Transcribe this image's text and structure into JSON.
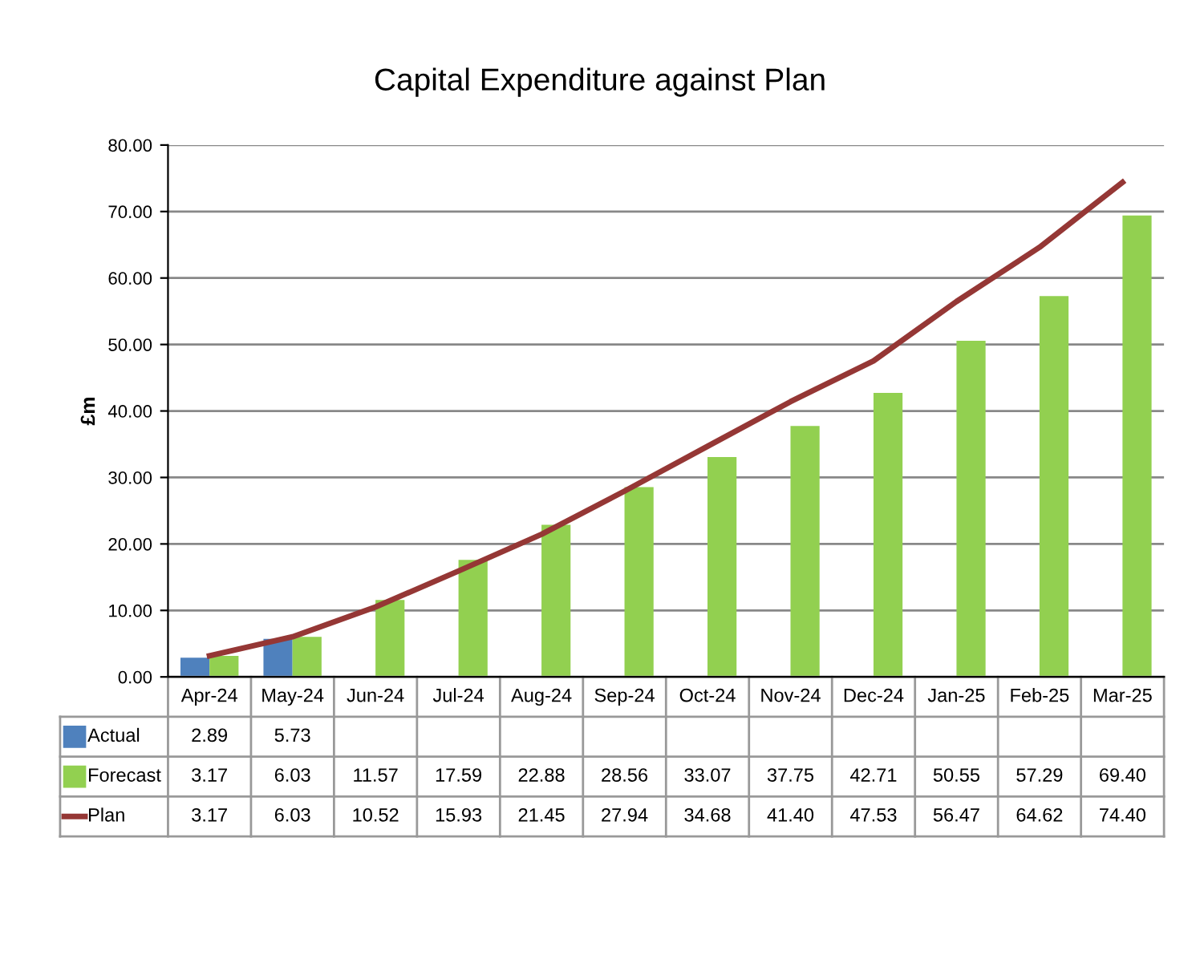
{
  "chart_data": {
    "type": "bar",
    "title": "Capital Expenditure against Plan",
    "ylabel": "£m",
    "categories": [
      "Apr-24",
      "May-24",
      "Jun-24",
      "Jul-24",
      "Aug-24",
      "Sep-24",
      "Oct-24",
      "Nov-24",
      "Dec-24",
      "Jan-25",
      "Feb-25",
      "Mar-25"
    ],
    "series": [
      {
        "name": "Actual",
        "color": "#4f81bd",
        "values": [
          2.89,
          5.73,
          null,
          null,
          null,
          null,
          null,
          null,
          null,
          null,
          null,
          null
        ],
        "value_labels": [
          "2.89",
          "5.73",
          null,
          null,
          null,
          null,
          null,
          null,
          null,
          null,
          null,
          null
        ]
      },
      {
        "name": "Forecast",
        "color": "#92d050",
        "values": [
          3.17,
          6.03,
          11.57,
          17.59,
          22.88,
          28.56,
          33.07,
          37.75,
          42.71,
          50.55,
          57.29,
          69.4
        ],
        "value_labels": [
          "3.17",
          "6.03",
          "11.57",
          "17.59",
          "22.88",
          "28.56",
          "33.07",
          "37.75",
          "42.71",
          "50.55",
          "57.29",
          "69.40"
        ]
      },
      {
        "name": "Plan",
        "type": "line",
        "color": "#953735",
        "values": [
          3.17,
          6.03,
          10.52,
          15.93,
          21.45,
          27.94,
          34.68,
          41.4,
          47.53,
          56.47,
          64.62,
          74.4
        ],
        "value_labels": [
          "3.17",
          "6.03",
          "10.52",
          "15.93",
          "21.45",
          "27.94",
          "34.68",
          "41.40",
          "47.53",
          "56.47",
          "64.62",
          "74.40"
        ]
      }
    ],
    "ylim": [
      0,
      80
    ],
    "yticks": [
      {
        "value": 0,
        "label": "0.00"
      },
      {
        "value": 10,
        "label": "10.00"
      },
      {
        "value": 20,
        "label": "20.00"
      },
      {
        "value": 30,
        "label": "30.00"
      },
      {
        "value": 40,
        "label": "40.00"
      },
      {
        "value": 50,
        "label": "50.00"
      },
      {
        "value": 60,
        "label": "60.00"
      },
      {
        "value": 70,
        "label": "70.00"
      },
      {
        "value": 80,
        "label": "80.00"
      }
    ],
    "grid": "y",
    "legend": "bottom",
    "marker": "none"
  }
}
